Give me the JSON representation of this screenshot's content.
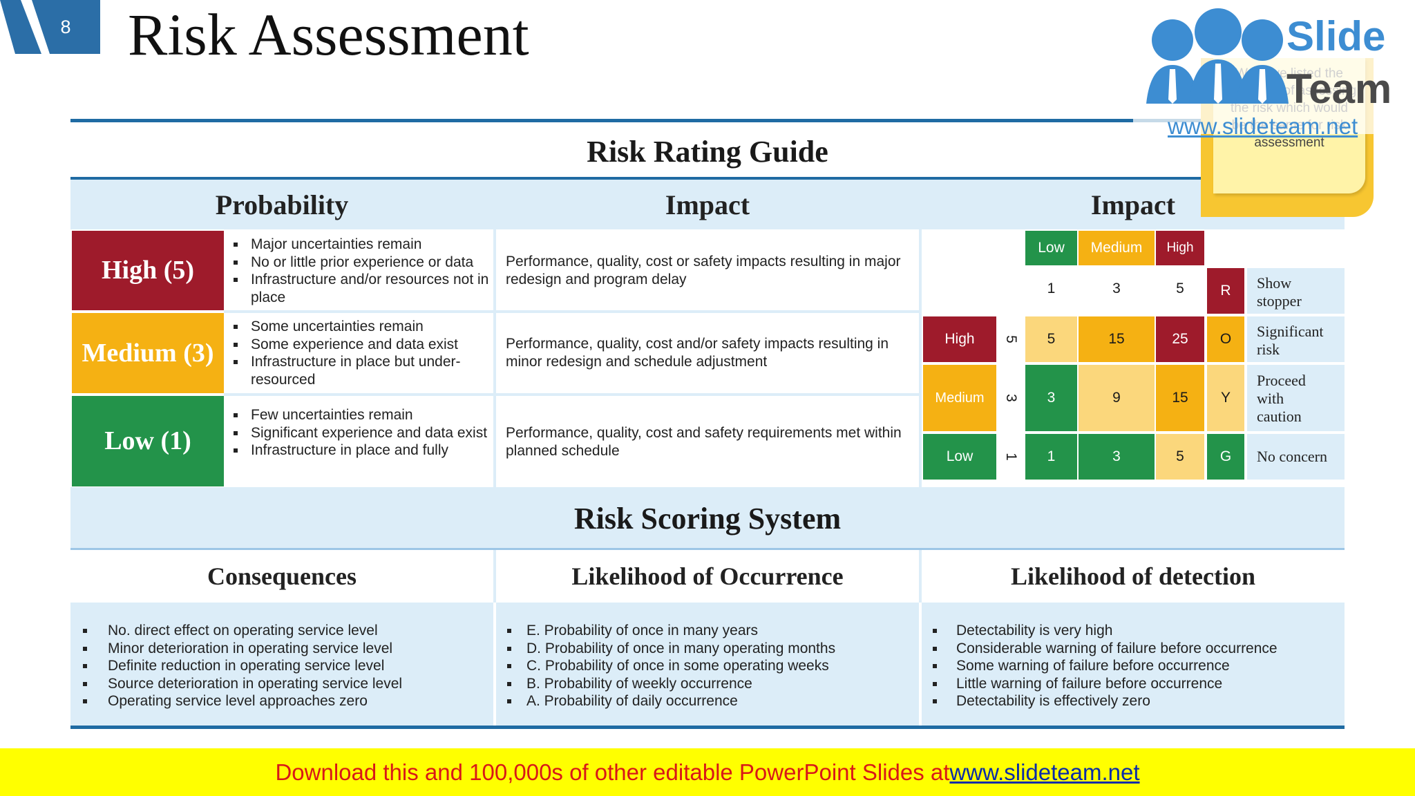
{
  "slide": {
    "page_number": "8",
    "title": "Risk Assessment"
  },
  "guide": {
    "title": "Risk Rating Guide",
    "col_probability": "Probability",
    "col_impact": "Impact",
    "col_matrix": "Impact",
    "rows": [
      {
        "label": "High (5)",
        "color": "#9e1b2b",
        "bullets": [
          "Major uncertainties remain",
          "No or little prior experience or data",
          "Infrastructure and/or resources not in place"
        ],
        "impact": "Performance, quality, cost or safety impacts resulting in major redesign and program delay"
      },
      {
        "label": "Medium (3)",
        "color": "#f5b113",
        "bullets": [
          "Some uncertainties remain",
          "Some experience and data exist",
          "Infrastructure in place but under-resourced"
        ],
        "impact": "Performance, quality, cost and/or safety impacts resulting in minor redesign and schedule adjustment"
      },
      {
        "label": "Low (1)",
        "color": "#23934a",
        "bullets": [
          "Few uncertainties remain",
          "Significant experience and data exist",
          "Infrastructure in place and fully"
        ],
        "impact": "Performance, quality, cost and safety requirements met within planned schedule"
      }
    ]
  },
  "matrix": {
    "impact_headers": [
      "Low",
      "Medium",
      "High"
    ],
    "impact_scores": [
      "1",
      "3",
      "5"
    ],
    "row_labels": [
      "High",
      "Medium",
      "Low"
    ],
    "row_scores": [
      "5",
      "3",
      "1"
    ],
    "values": [
      [
        "5",
        "15",
        "25"
      ],
      [
        "3",
        "9",
        "15"
      ],
      [
        "1",
        "3",
        "5"
      ]
    ],
    "codes": [
      "R",
      "O",
      "Y",
      "G"
    ],
    "meanings": [
      "Show stopper",
      "Significant risk",
      "Proceed with caution",
      "No concern"
    ],
    "colors": {
      "red": "#9e1b2b",
      "orange": "#f5b113",
      "yellow": "#fbd77c",
      "green": "#23934a"
    }
  },
  "note": {
    "text": "We have listed the new ways of assessing the risk which would be the same for risk assessment"
  },
  "logo": {
    "word1": "Slide",
    "word2": "Team",
    "url": "www.slideteam.net"
  },
  "scoring": {
    "title": "Risk Scoring System",
    "columns": [
      {
        "header": "Consequences",
        "items": [
          "No. direct effect on operating service level",
          "Minor deterioration in operating service level",
          "Definite reduction in operating service level",
          "Source deterioration in operating service level",
          "Operating service level approaches zero"
        ]
      },
      {
        "header": "Likelihood of Occurrence",
        "items": [
          "E. Probability of once in many years",
          "D. Probability of once in many operating months",
          "C. Probability of once in some operating weeks",
          "B. Probability of weekly occurrence",
          "A. Probability of daily occurrence"
        ]
      },
      {
        "header": "Likelihood of detection",
        "items": [
          "Detectability is very high",
          "Considerable warning of failure before occurrence",
          "Some warning of failure before occurrence",
          "Little warning of failure before occurrence",
          "Detectability is effectively zero"
        ]
      }
    ]
  },
  "footer": {
    "text": "Download this and 100,000s of other editable PowerPoint Slides at ",
    "link": "www.slideteam.net"
  }
}
